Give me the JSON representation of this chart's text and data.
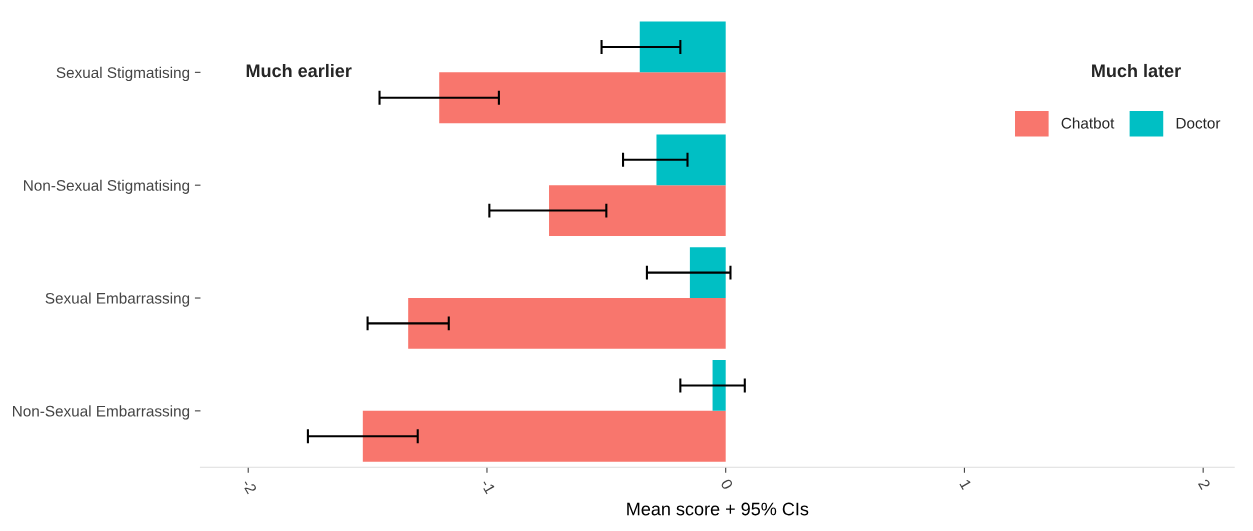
{
  "chart_data": {
    "type": "bar",
    "orientation": "horizontal",
    "categories": [
      "Sexual Stigmatising",
      "Non-Sexual Stigmatising",
      "Sexual Embarrassing",
      "Non-Sexual Embarrassing"
    ],
    "series": [
      {
        "name": "Chatbot",
        "color": "#f8766d",
        "values": [
          -1.2,
          -0.74,
          -1.33,
          -1.52
        ],
        "errors": [
          [
            -1.45,
            -0.95
          ],
          [
            -0.99,
            -0.5
          ],
          [
            -1.5,
            -1.16
          ],
          [
            -1.75,
            -1.29
          ]
        ]
      },
      {
        "name": "Doctor",
        "color": "#00bfc4",
        "values": [
          -0.36,
          -0.29,
          -0.15,
          -0.055
        ],
        "errors": [
          [
            -0.52,
            -0.19
          ],
          [
            -0.43,
            -0.16
          ],
          [
            -0.33,
            0.02
          ],
          [
            -0.19,
            0.08
          ]
        ]
      }
    ],
    "xlabel": "Mean score + 95% CIs",
    "xlim": [
      -2.2,
      2.13
    ],
    "xticks": [
      -2,
      -1,
      0,
      1,
      2
    ],
    "annotations": [
      "Much earlier",
      "Much later"
    ],
    "legend": "top right",
    "grid": false
  }
}
